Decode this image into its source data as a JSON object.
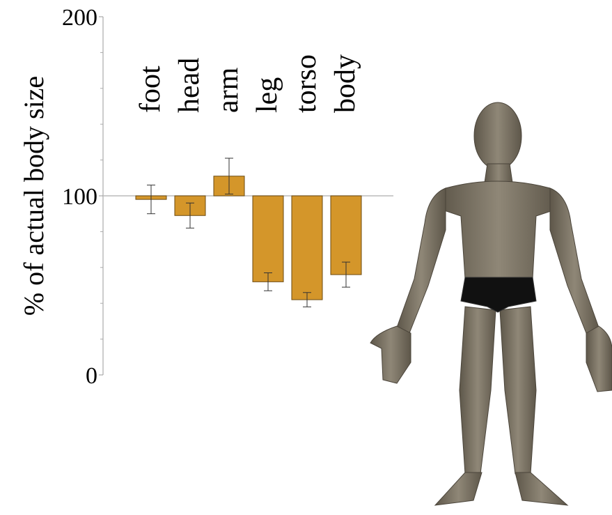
{
  "chart_data": {
    "type": "bar",
    "y_label": "% of actual body size",
    "categories": [
      "foot",
      "head",
      "arm",
      "leg",
      "torso",
      "body"
    ],
    "values": [
      98,
      89,
      111,
      52,
      42,
      56
    ],
    "errors": [
      8,
      7,
      10,
      5,
      4,
      7
    ],
    "bar_base": 100,
    "color": "#d4962a",
    "ylim": [
      0,
      200
    ],
    "yticks": [
      0,
      100,
      200
    ],
    "minor_yticks": [
      20,
      40,
      60,
      80,
      120,
      140,
      160,
      180
    ]
  }
}
